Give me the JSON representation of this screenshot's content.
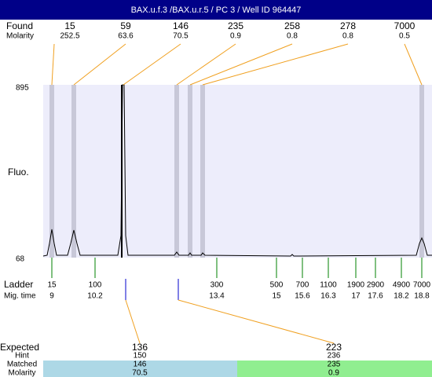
{
  "header": {
    "title": "BAX.u.f.3 /BAX.u.r.5 / PC 3 / Well ID 964447"
  },
  "found": {
    "label": "Found",
    "molarity_label": "Molarity",
    "peaks": [
      {
        "size": "15",
        "molarity": "252.5"
      },
      {
        "size": "59",
        "molarity": "63.6"
      },
      {
        "size": "146",
        "molarity": "70.5"
      },
      {
        "size": "235",
        "molarity": "0.9"
      },
      {
        "size": "258",
        "molarity": "0.8"
      },
      {
        "size": "278",
        "molarity": "0.8"
      },
      {
        "size": "7000",
        "molarity": "0.5"
      }
    ]
  },
  "plot": {
    "y_label": "Fluo.",
    "y_max": "895",
    "y_min": "68"
  },
  "ladder": {
    "label": "Ladder",
    "time_label": "Mig. time",
    "entries": [
      {
        "size": "15",
        "time": "9"
      },
      {
        "size": "100",
        "time": "10.2"
      },
      {
        "size": "300",
        "time": "13.4"
      },
      {
        "size": "500",
        "time": "15"
      },
      {
        "size": "700",
        "time": "15.6"
      },
      {
        "size": "1100",
        "time": "16.3"
      },
      {
        "size": "1900",
        "time": "17"
      },
      {
        "size": "2900",
        "time": "17.6"
      },
      {
        "size": "4900",
        "time": "18.2"
      },
      {
        "size": "7000",
        "time": "18.8"
      }
    ]
  },
  "expected": {
    "label": "Expected",
    "hint_label": "Hint",
    "matched_label": "Matched",
    "molarity_label": "Molarity",
    "items": [
      {
        "size": "136",
        "hint": "150",
        "matched": "146",
        "molarity": "70.5"
      },
      {
        "size": "223",
        "hint": "236",
        "matched": "235",
        "molarity": "0.9"
      }
    ]
  }
}
